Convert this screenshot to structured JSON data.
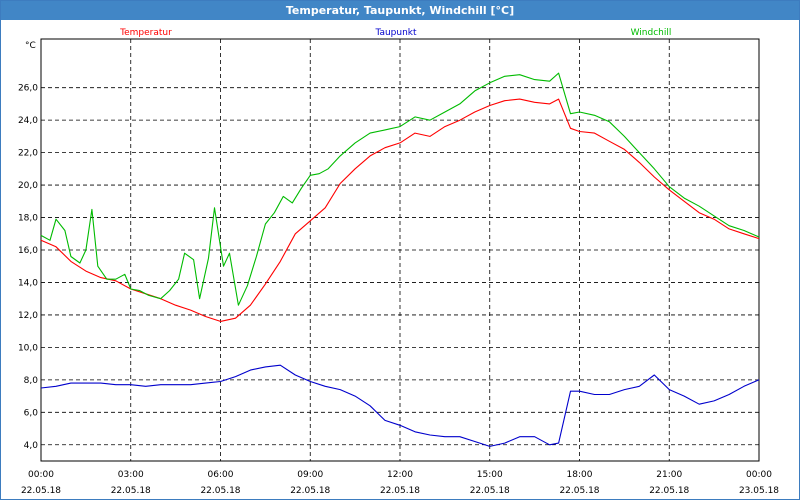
{
  "window": {
    "title": "Temperatur, Taupunkt, Windchill [°C]"
  },
  "chart_data": {
    "type": "line",
    "unit_label": "°C",
    "ylim": [
      3,
      29
    ],
    "y_ticks": [
      "4,0",
      "6,0",
      "8,0",
      "10,0",
      "12,0",
      "14,0",
      "16,0",
      "18,0",
      "20,0",
      "22,0",
      "24,0",
      "26,0"
    ],
    "y_tick_values": [
      4,
      6,
      8,
      10,
      12,
      14,
      16,
      18,
      20,
      22,
      24,
      26
    ],
    "xlim_hours": [
      0,
      24
    ],
    "x_tick_hours": [
      0,
      3,
      6,
      9,
      12,
      15,
      18,
      21,
      24
    ],
    "x_ticks": [
      {
        "time": "00:00",
        "date": "22.05.18"
      },
      {
        "time": "03:00",
        "date": "22.05.18"
      },
      {
        "time": "06:00",
        "date": "22.05.18"
      },
      {
        "time": "09:00",
        "date": "22.05.18"
      },
      {
        "time": "12:00",
        "date": "22.05.18"
      },
      {
        "time": "15:00",
        "date": "22.05.18"
      },
      {
        "time": "18:00",
        "date": "22.05.18"
      },
      {
        "time": "21:00",
        "date": "22.05.18"
      },
      {
        "time": "00:00",
        "date": "23.05.18"
      }
    ],
    "grid": true,
    "series": [
      {
        "name": "Temperatur",
        "color": "#ff0000",
        "points": [
          [
            0,
            16.6
          ],
          [
            0.5,
            16.2
          ],
          [
            1,
            15.3
          ],
          [
            1.5,
            14.7
          ],
          [
            2,
            14.3
          ],
          [
            2.5,
            14.1
          ],
          [
            3,
            13.6
          ],
          [
            3.5,
            13.3
          ],
          [
            4,
            13.0
          ],
          [
            4.5,
            12.6
          ],
          [
            5,
            12.3
          ],
          [
            5.5,
            11.9
          ],
          [
            6,
            11.6
          ],
          [
            6.5,
            11.8
          ],
          [
            7,
            12.6
          ],
          [
            7.5,
            13.9
          ],
          [
            8,
            15.3
          ],
          [
            8.5,
            17.0
          ],
          [
            9,
            17.8
          ],
          [
            9.5,
            18.6
          ],
          [
            10,
            20.1
          ],
          [
            10.5,
            21.0
          ],
          [
            11,
            21.8
          ],
          [
            11.5,
            22.3
          ],
          [
            12,
            22.6
          ],
          [
            12.5,
            23.2
          ],
          [
            13,
            23.0
          ],
          [
            13.5,
            23.6
          ],
          [
            14,
            24.0
          ],
          [
            14.5,
            24.5
          ],
          [
            15,
            24.9
          ],
          [
            15.5,
            25.2
          ],
          [
            16,
            25.3
          ],
          [
            16.5,
            25.1
          ],
          [
            17,
            25.0
          ],
          [
            17.3,
            25.3
          ],
          [
            17.7,
            23.5
          ],
          [
            18,
            23.3
          ],
          [
            18.5,
            23.2
          ],
          [
            19,
            22.7
          ],
          [
            19.5,
            22.2
          ],
          [
            20,
            21.4
          ],
          [
            20.5,
            20.5
          ],
          [
            21,
            19.7
          ],
          [
            21.5,
            19.0
          ],
          [
            22,
            18.3
          ],
          [
            22.5,
            17.9
          ],
          [
            23,
            17.3
          ],
          [
            23.5,
            17.0
          ],
          [
            24,
            16.7
          ]
        ]
      },
      {
        "name": "Taupunkt",
        "color": "#0000cc",
        "points": [
          [
            0,
            7.5
          ],
          [
            0.5,
            7.6
          ],
          [
            1,
            7.8
          ],
          [
            1.5,
            7.8
          ],
          [
            2,
            7.8
          ],
          [
            2.5,
            7.7
          ],
          [
            3,
            7.7
          ],
          [
            3.5,
            7.6
          ],
          [
            4,
            7.7
          ],
          [
            4.5,
            7.7
          ],
          [
            5,
            7.7
          ],
          [
            5.5,
            7.8
          ],
          [
            6,
            7.9
          ],
          [
            6.5,
            8.2
          ],
          [
            7,
            8.6
          ],
          [
            7.5,
            8.8
          ],
          [
            8,
            8.9
          ],
          [
            8.5,
            8.3
          ],
          [
            9,
            7.9
          ],
          [
            9.5,
            7.6
          ],
          [
            10,
            7.4
          ],
          [
            10.5,
            7.0
          ],
          [
            11,
            6.4
          ],
          [
            11.5,
            5.5
          ],
          [
            12,
            5.2
          ],
          [
            12.5,
            4.8
          ],
          [
            13,
            4.6
          ],
          [
            13.5,
            4.5
          ],
          [
            14,
            4.5
          ],
          [
            14.5,
            4.2
          ],
          [
            15,
            3.9
          ],
          [
            15.5,
            4.1
          ],
          [
            16,
            4.5
          ],
          [
            16.5,
            4.5
          ],
          [
            17,
            4.0
          ],
          [
            17.3,
            4.1
          ],
          [
            17.7,
            7.3
          ],
          [
            18,
            7.3
          ],
          [
            18.5,
            7.1
          ],
          [
            19,
            7.1
          ],
          [
            19.5,
            7.4
          ],
          [
            20,
            7.6
          ],
          [
            20.5,
            8.3
          ],
          [
            21,
            7.4
          ],
          [
            21.5,
            7.0
          ],
          [
            22,
            6.5
          ],
          [
            22.5,
            6.7
          ],
          [
            23,
            7.1
          ],
          [
            23.5,
            7.6
          ],
          [
            24,
            8.0
          ]
        ]
      },
      {
        "name": "Windchill",
        "color": "#00bb00",
        "points": [
          [
            0,
            16.9
          ],
          [
            0.3,
            16.6
          ],
          [
            0.5,
            17.9
          ],
          [
            0.8,
            17.2
          ],
          [
            1,
            15.6
          ],
          [
            1.3,
            15.2
          ],
          [
            1.5,
            16.0
          ],
          [
            1.7,
            18.5
          ],
          [
            1.9,
            15.0
          ],
          [
            2.2,
            14.2
          ],
          [
            2.5,
            14.2
          ],
          [
            2.8,
            14.5
          ],
          [
            3,
            13.6
          ],
          [
            3.3,
            13.5
          ],
          [
            3.6,
            13.2
          ],
          [
            4,
            13.0
          ],
          [
            4.3,
            13.5
          ],
          [
            4.6,
            14.2
          ],
          [
            4.8,
            15.8
          ],
          [
            5.1,
            15.4
          ],
          [
            5.3,
            13.0
          ],
          [
            5.6,
            15.5
          ],
          [
            5.8,
            18.6
          ],
          [
            6.1,
            15.0
          ],
          [
            6.3,
            15.8
          ],
          [
            6.6,
            12.6
          ],
          [
            6.9,
            13.8
          ],
          [
            7.2,
            15.6
          ],
          [
            7.5,
            17.6
          ],
          [
            7.8,
            18.3
          ],
          [
            8.1,
            19.3
          ],
          [
            8.4,
            18.9
          ],
          [
            8.7,
            19.8
          ],
          [
            9,
            20.6
          ],
          [
            9.3,
            20.7
          ],
          [
            9.6,
            21.0
          ],
          [
            10,
            21.8
          ],
          [
            10.5,
            22.6
          ],
          [
            11,
            23.2
          ],
          [
            11.5,
            23.4
          ],
          [
            12,
            23.6
          ],
          [
            12.5,
            24.2
          ],
          [
            13,
            24.0
          ],
          [
            13.5,
            24.5
          ],
          [
            14,
            25.0
          ],
          [
            14.5,
            25.8
          ],
          [
            15,
            26.3
          ],
          [
            15.5,
            26.7
          ],
          [
            16,
            26.8
          ],
          [
            16.5,
            26.5
          ],
          [
            17,
            26.4
          ],
          [
            17.3,
            26.9
          ],
          [
            17.7,
            24.4
          ],
          [
            18,
            24.5
          ],
          [
            18.5,
            24.3
          ],
          [
            19,
            23.9
          ],
          [
            19.5,
            23.0
          ],
          [
            20,
            22.0
          ],
          [
            20.5,
            21.0
          ],
          [
            21,
            19.9
          ],
          [
            21.5,
            19.2
          ],
          [
            22,
            18.7
          ],
          [
            22.5,
            18.1
          ],
          [
            23,
            17.5
          ],
          [
            23.5,
            17.2
          ],
          [
            24,
            16.8
          ]
        ]
      }
    ]
  }
}
